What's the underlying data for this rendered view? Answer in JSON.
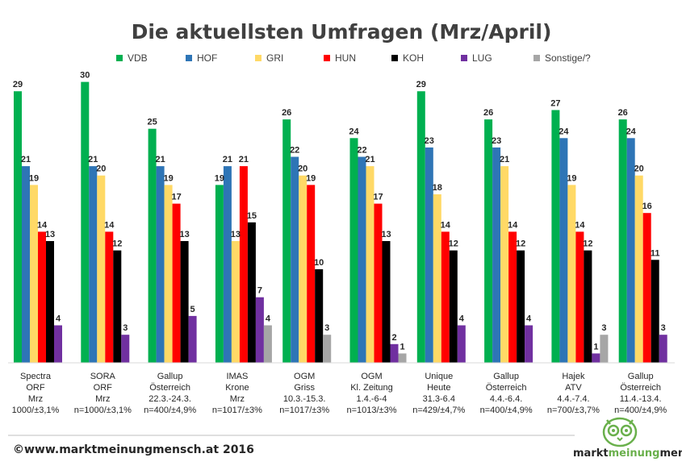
{
  "chart_data": {
    "type": "bar",
    "title": "Die aktuellsten Umfragen (Mrz/April)",
    "ylim": [
      0,
      31
    ],
    "grid": false,
    "legend_placement": "top",
    "series": [
      {
        "name": "VDB",
        "color": "#00b050",
        "values": [
          29,
          30,
          25,
          19,
          26,
          24,
          29,
          26,
          27,
          26
        ]
      },
      {
        "name": "HOF",
        "color": "#2e75b6",
        "values": [
          21,
          21,
          21,
          21,
          22,
          22,
          23,
          23,
          24,
          24
        ]
      },
      {
        "name": "GRI",
        "color": "#ffd966",
        "values": [
          19,
          20,
          19,
          13,
          20,
          21,
          18,
          21,
          19,
          20
        ]
      },
      {
        "name": "HUN",
        "color": "#ff0000",
        "values": [
          14,
          14,
          17,
          21,
          19,
          17,
          14,
          14,
          14,
          16
        ]
      },
      {
        "name": "KOH",
        "color": "#000000",
        "values": [
          13,
          12,
          13,
          15,
          10,
          13,
          12,
          12,
          12,
          11
        ]
      },
      {
        "name": "LUG",
        "color": "#7030a0",
        "values": [
          4,
          3,
          5,
          7,
          0,
          2,
          4,
          4,
          1,
          3
        ]
      },
      {
        "name": "Sonstige/?",
        "color": "#a6a6a6",
        "values": [
          0,
          0,
          0,
          4,
          3,
          1,
          0,
          0,
          3,
          0
        ]
      }
    ],
    "categories": [
      [
        "Spectra",
        "ORF",
        "Mrz",
        "1000/±3,1%"
      ],
      [
        "SORA",
        "ORF",
        "Mrz",
        "n=1000/±3,1%"
      ],
      [
        "Gallup",
        "Österreich",
        "22.3.-24.3.",
        "n=400/±4,9%"
      ],
      [
        "IMAS",
        "Krone",
        "Mrz",
        "n=1017/±3%"
      ],
      [
        "OGM",
        "Griss",
        "10.3.-15.3.",
        "n=1017/±3%"
      ],
      [
        "OGM",
        "Kl. Zeitung",
        "1.4.-6-4",
        "n=1013/±3%"
      ],
      [
        "Unique",
        "Heute",
        "31.3-6.4",
        "n=429/±4,7%"
      ],
      [
        "Gallup",
        "Österreich",
        "4.4.-6.4.",
        "n=400/±4,9%"
      ],
      [
        "Hajek",
        "ATV",
        "4.4.-7.4.",
        "n=700/±3,7%"
      ],
      [
        "Gallup",
        "Österreich",
        "11.4.-13.4.",
        "n=400/±4,9%"
      ]
    ]
  },
  "footer": {
    "copyright": "©www.marktmeinungmensch.at 2016",
    "logo_part1": "markt",
    "logo_part2": "meinung",
    "logo_part3": "mensch"
  }
}
